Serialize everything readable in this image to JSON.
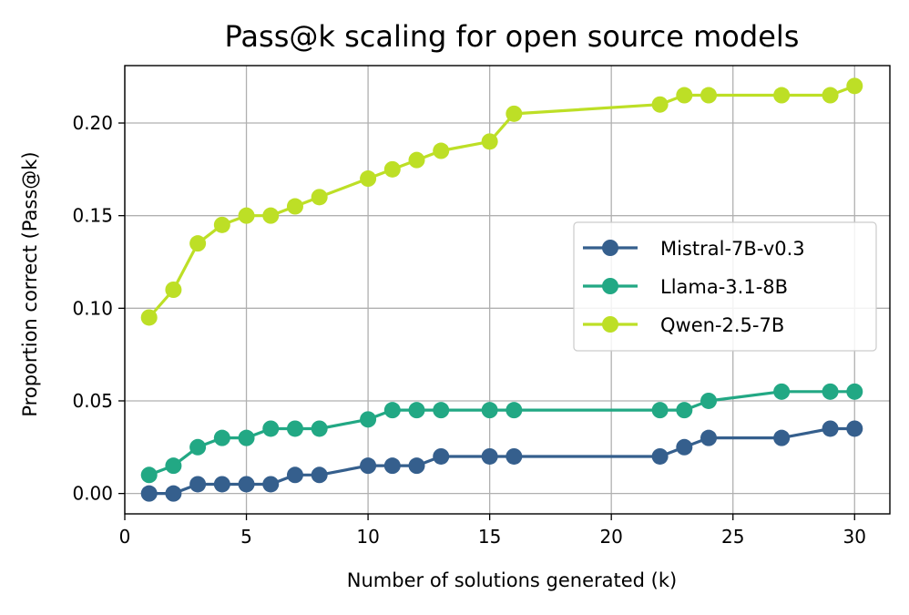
{
  "chart_data": {
    "type": "line",
    "title": "Pass@k scaling for open source models",
    "xlabel": "Number of solutions generated (k)",
    "ylabel": "Proportion correct (Pass@k)",
    "xlim": [
      0.0,
      31.45
    ],
    "ylim": [
      -0.011,
      0.231
    ],
    "xticks": [
      0,
      5,
      10,
      15,
      20,
      25,
      30
    ],
    "xtick_labels": [
      "0",
      "5",
      "10",
      "15",
      "20",
      "25",
      "30"
    ],
    "yticks": [
      0.0,
      0.05,
      0.1,
      0.15,
      0.2
    ],
    "ytick_labels": [
      "0.00",
      "0.05",
      "0.10",
      "0.15",
      "0.20"
    ],
    "grid": true,
    "legend_position": "center-right",
    "series": [
      {
        "name": "Mistral-7B-v0.3",
        "color": "#355f8d",
        "x": [
          1,
          2,
          3,
          4,
          5,
          6,
          7,
          8,
          10,
          11,
          12,
          13,
          15,
          16,
          22,
          23,
          24,
          27,
          29,
          30
        ],
        "values": [
          0.0,
          0.0,
          0.005,
          0.005,
          0.005,
          0.005,
          0.01,
          0.01,
          0.015,
          0.015,
          0.015,
          0.02,
          0.02,
          0.02,
          0.02,
          0.025,
          0.03,
          0.03,
          0.035,
          0.035
        ]
      },
      {
        "name": "Llama-3.1-8B",
        "color": "#22a884",
        "x": [
          1,
          2,
          3,
          4,
          5,
          6,
          7,
          8,
          10,
          11,
          12,
          13,
          15,
          16,
          22,
          23,
          24,
          27,
          29,
          30
        ],
        "values": [
          0.01,
          0.015,
          0.025,
          0.03,
          0.03,
          0.035,
          0.035,
          0.035,
          0.04,
          0.045,
          0.045,
          0.045,
          0.045,
          0.045,
          0.045,
          0.045,
          0.05,
          0.055,
          0.055,
          0.055
        ]
      },
      {
        "name": "Qwen-2.5-7B",
        "color": "#bddf26",
        "x": [
          1,
          2,
          3,
          4,
          5,
          6,
          7,
          8,
          10,
          11,
          12,
          13,
          15,
          16,
          22,
          23,
          24,
          27,
          29,
          30
        ],
        "values": [
          0.095,
          0.11,
          0.135,
          0.145,
          0.15,
          0.15,
          0.155,
          0.16,
          0.17,
          0.175,
          0.18,
          0.185,
          0.19,
          0.205,
          0.21,
          0.215,
          0.215,
          0.215,
          0.215,
          0.22
        ]
      }
    ]
  }
}
